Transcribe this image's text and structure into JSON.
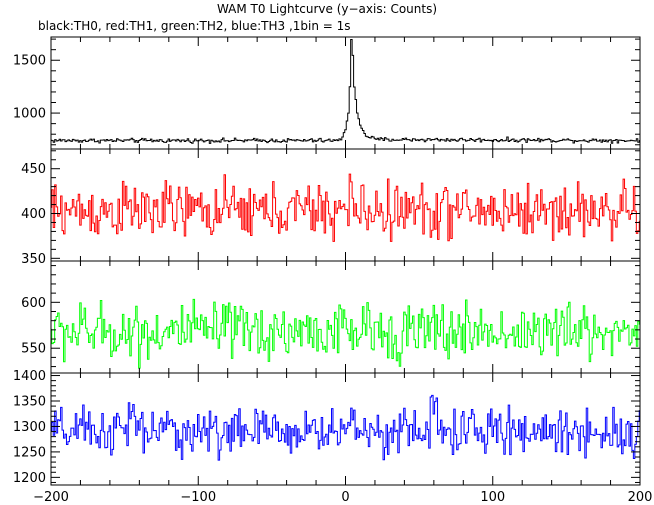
{
  "chart_data": {
    "type": "line",
    "title": "WAM T0 Lightcurve (y−axis: Counts)",
    "subtitle": "black:TH0, red:TH1, green:TH2, blue:TH3 ,1bin = 1s",
    "xlabel": "",
    "ylabel": "",
    "xlim": [
      -200,
      200
    ],
    "x_ticks": [
      "−200",
      "−100",
      "0",
      "100",
      "200"
    ],
    "x": {
      "start": -200,
      "end": 200,
      "step": 1
    },
    "grid": false,
    "panels": [
      {
        "series_label": "TH0",
        "color": "#000000",
        "ylim": [
          660,
          1720
        ],
        "y_ticks": [
          "1000",
          "1500"
        ],
        "baseline": 720,
        "noise": 14,
        "features": [
          {
            "x": -200,
            "value": 740
          },
          {
            "x": -3,
            "value": 740
          },
          {
            "x": -2,
            "value": 790
          },
          {
            "x": 0,
            "value": 850
          },
          {
            "x": 2,
            "value": 1000
          },
          {
            "x": 3,
            "value": 1250
          },
          {
            "x": 4,
            "value": 1700
          },
          {
            "x": 5,
            "value": 1550
          },
          {
            "x": 6,
            "value": 1250
          },
          {
            "x": 8,
            "value": 1000
          },
          {
            "x": 10,
            "value": 880
          },
          {
            "x": 14,
            "value": 790
          },
          {
            "x": 20,
            "value": 750
          },
          {
            "x": 200,
            "value": 740
          }
        ]
      },
      {
        "series_label": "TH1",
        "color": "#ff0000",
        "ylim": [
          347,
          472
        ],
        "y_ticks": [
          "350",
          "400",
          "450"
        ],
        "baseline": 403,
        "noise": 22,
        "features": [
          {
            "x": 4,
            "value": 420
          }
        ]
      },
      {
        "series_label": "TH2",
        "color": "#00ff00",
        "ylim": [
          523,
          645
        ],
        "y_ticks": [
          "550",
          "600"
        ],
        "baseline": 568,
        "noise": 22,
        "features": []
      },
      {
        "series_label": "TH3",
        "color": "#0000ff",
        "ylim": [
          1185,
          1405
        ],
        "y_ticks": [
          "1200",
          "1250",
          "1300",
          "1350",
          "1400"
        ],
        "baseline": 1290,
        "noise": 32,
        "features": [
          {
            "x": -145,
            "value": 1320
          },
          {
            "x": 5,
            "value": 1320
          },
          {
            "x": 60,
            "value": 1330
          }
        ]
      }
    ]
  }
}
